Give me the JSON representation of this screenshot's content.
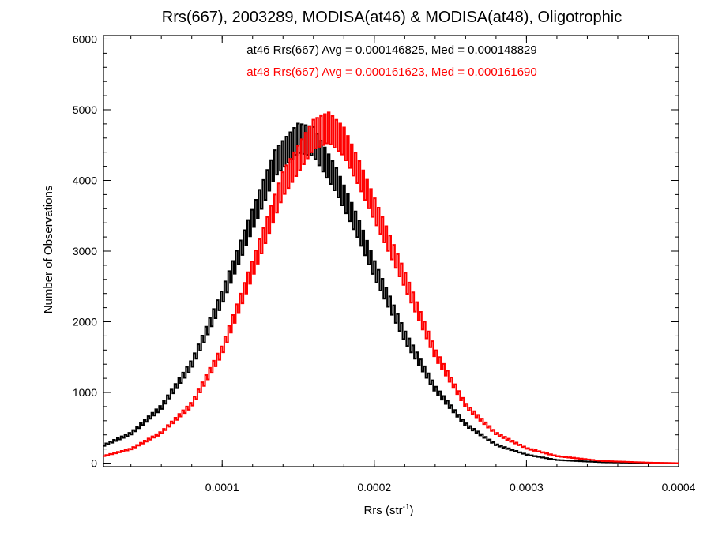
{
  "chart_data": {
    "type": "histogram",
    "title": "Rrs(667), 2003289, MODISA(at46) & MODISA(at48), Oligotrophic",
    "xlabel_main": "Rrs (str",
    "xlabel_sup": "-1",
    "xlabel_close": ")",
    "ylabel": "Number of Observations",
    "xlim": [
      2.2e-05,
      0.0004
    ],
    "ylim": [
      -50,
      6050
    ],
    "x_major_ticks": [
      0.0001,
      0.0002,
      0.0003,
      0.0004
    ],
    "x_tick_labels": [
      "0.0001",
      "0.0002",
      "0.0003",
      "0.0004"
    ],
    "y_major_ticks": [
      0,
      1000,
      2000,
      3000,
      4000,
      5000,
      6000
    ],
    "y_tick_labels": [
      "0",
      "1000",
      "2000",
      "3000",
      "4000",
      "5000",
      "6000"
    ],
    "annotations": [
      {
        "text": "at46 Rrs(667) Avg = 0.000146825, Med = 0.000148829",
        "color": "#000000"
      },
      {
        "text": "at48 Rrs(667) Avg = 0.000161623, Med = 0.000161690",
        "color": "#ff0000"
      }
    ],
    "series": [
      {
        "id": "at46",
        "color": "#000000",
        "avg": 0.000146825,
        "median": 0.000148829,
        "points": [
          [
            2.2e-05,
            250
          ],
          [
            4e-05,
            420
          ],
          [
            6e-05,
            790
          ],
          [
            8e-05,
            1400
          ],
          [
            0.0001,
            2350
          ],
          [
            0.00012,
            3450
          ],
          [
            0.000135,
            4250
          ],
          [
            0.00015,
            4600
          ],
          [
            0.00016,
            4550
          ],
          [
            0.000175,
            4000
          ],
          [
            0.00019,
            3300
          ],
          [
            0.0002,
            2750
          ],
          [
            0.00022,
            1800
          ],
          [
            0.00024,
            1050
          ],
          [
            0.00026,
            550
          ],
          [
            0.00028,
            260
          ],
          [
            0.0003,
            120
          ],
          [
            0.00032,
            45
          ],
          [
            0.00035,
            12
          ],
          [
            0.00038,
            3
          ],
          [
            0.0004,
            0
          ]
        ]
      },
      {
        "id": "at48",
        "color": "#ff0000",
        "avg": 0.000161623,
        "median": 0.00016169,
        "points": [
          [
            2.2e-05,
            100
          ],
          [
            4e-05,
            200
          ],
          [
            6e-05,
            430
          ],
          [
            8e-05,
            830
          ],
          [
            0.0001,
            1600
          ],
          [
            0.00012,
            2750
          ],
          [
            0.00014,
            3950
          ],
          [
            0.00016,
            4650
          ],
          [
            0.00017,
            4750
          ],
          [
            0.00018,
            4550
          ],
          [
            0.00019,
            4100
          ],
          [
            0.0002,
            3600
          ],
          [
            0.00022,
            2600
          ],
          [
            0.00024,
            1550
          ],
          [
            0.00026,
            820
          ],
          [
            0.00028,
            420
          ],
          [
            0.0003,
            210
          ],
          [
            0.00032,
            100
          ],
          [
            0.00035,
            30
          ],
          [
            0.00038,
            8
          ],
          [
            0.0004,
            0
          ]
        ]
      }
    ]
  }
}
